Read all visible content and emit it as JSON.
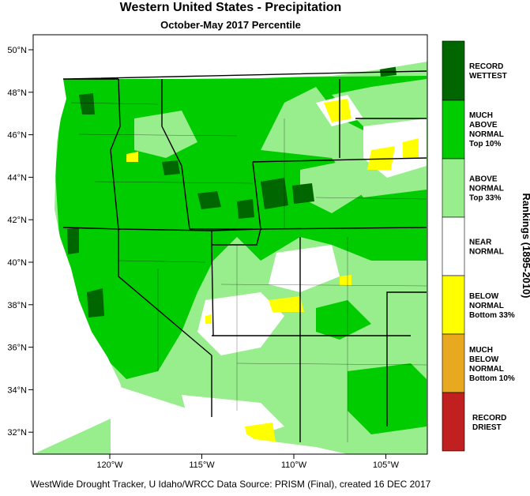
{
  "header": {
    "title": "Western United States - Precipitation",
    "subtitle": "October-May 2017 Percentile"
  },
  "map": {
    "lat_labels": [
      "50°N",
      "48°N",
      "46°N",
      "44°N",
      "42°N",
      "40°N",
      "38°N",
      "36°N",
      "34°N",
      "32°N"
    ],
    "lon_labels": [
      "120°W",
      "115°W",
      "110°W",
      "105°W"
    ]
  },
  "legend": {
    "title": "Rankings (1895-2010)",
    "items": [
      {
        "lines": [
          "RECORD",
          "WETTEST"
        ]
      },
      {
        "lines": [
          "MUCH",
          "ABOVE",
          "NORMAL",
          "Top 10%"
        ]
      },
      {
        "lines": [
          "ABOVE",
          "NORMAL",
          "Top 33%"
        ]
      },
      {
        "lines": [
          "NEAR",
          "NORMAL"
        ]
      },
      {
        "lines": [
          "BELOW",
          "NORMAL",
          "Bottom 33%"
        ]
      },
      {
        "lines": [
          "MUCH",
          "BELOW",
          "NORMAL",
          "Bottom 10%"
        ]
      },
      {
        "lines": [
          "RECORD",
          "DRIEST"
        ]
      }
    ]
  },
  "footer": "WestWide Drought Tracker, U Idaho/WRCC Data Source: PRISM (Final), created 16 DEC 2017"
}
